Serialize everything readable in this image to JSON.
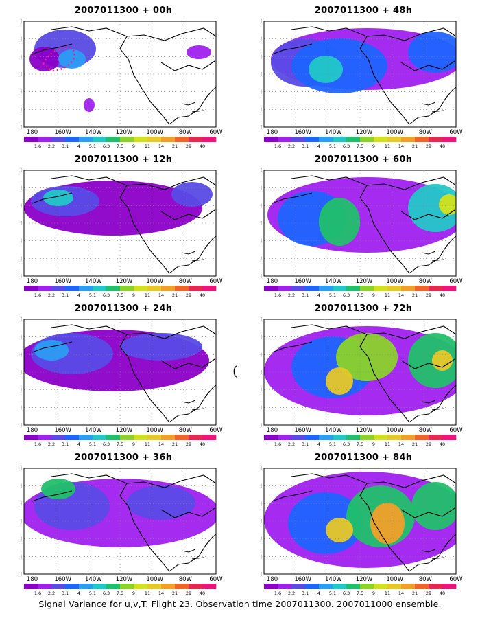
{
  "panels": [
    {
      "title": "2007011300 + 00h",
      "lead": "00h"
    },
    {
      "title": "2007011300 + 48h",
      "lead": "48h"
    },
    {
      "title": "2007011300 + 12h",
      "lead": "12h"
    },
    {
      "title": "2007011300 + 60h",
      "lead": "60h"
    },
    {
      "title": "2007011300 + 24h",
      "lead": "24h"
    },
    {
      "title": "2007011300 + 72h",
      "lead": "72h"
    },
    {
      "title": "2007011300 + 36h",
      "lead": "36h"
    },
    {
      "title": "2007011300 + 84h",
      "lead": "84h"
    }
  ],
  "axes": {
    "lat_labels": [
      "10N",
      "20N",
      "30N",
      "40N",
      "50N",
      "60N",
      "70N"
    ],
    "lon_labels": [
      "180",
      "160W",
      "140W",
      "120W",
      "100W",
      "80W",
      "60W"
    ]
  },
  "colorbar": {
    "labels": [
      "1.6",
      "2.2",
      "3.1",
      "4",
      "5.1",
      "6.3",
      "7.5",
      "9",
      "11",
      "14",
      "21",
      "29",
      "40"
    ],
    "colors": [
      "#8b00c8",
      "#a020f0",
      "#5a4ae6",
      "#1e64ff",
      "#2a9df4",
      "#22c8c8",
      "#20c06a",
      "#8ad22a",
      "#d2e11e",
      "#e6c828",
      "#f0a028",
      "#f06428",
      "#e62850",
      "#f0147a"
    ]
  },
  "caption": "Signal Variance for u,v,T. Flight 23. Observation time 2007011300. 2007011000 ensemble.",
  "stray_mark": "("
}
